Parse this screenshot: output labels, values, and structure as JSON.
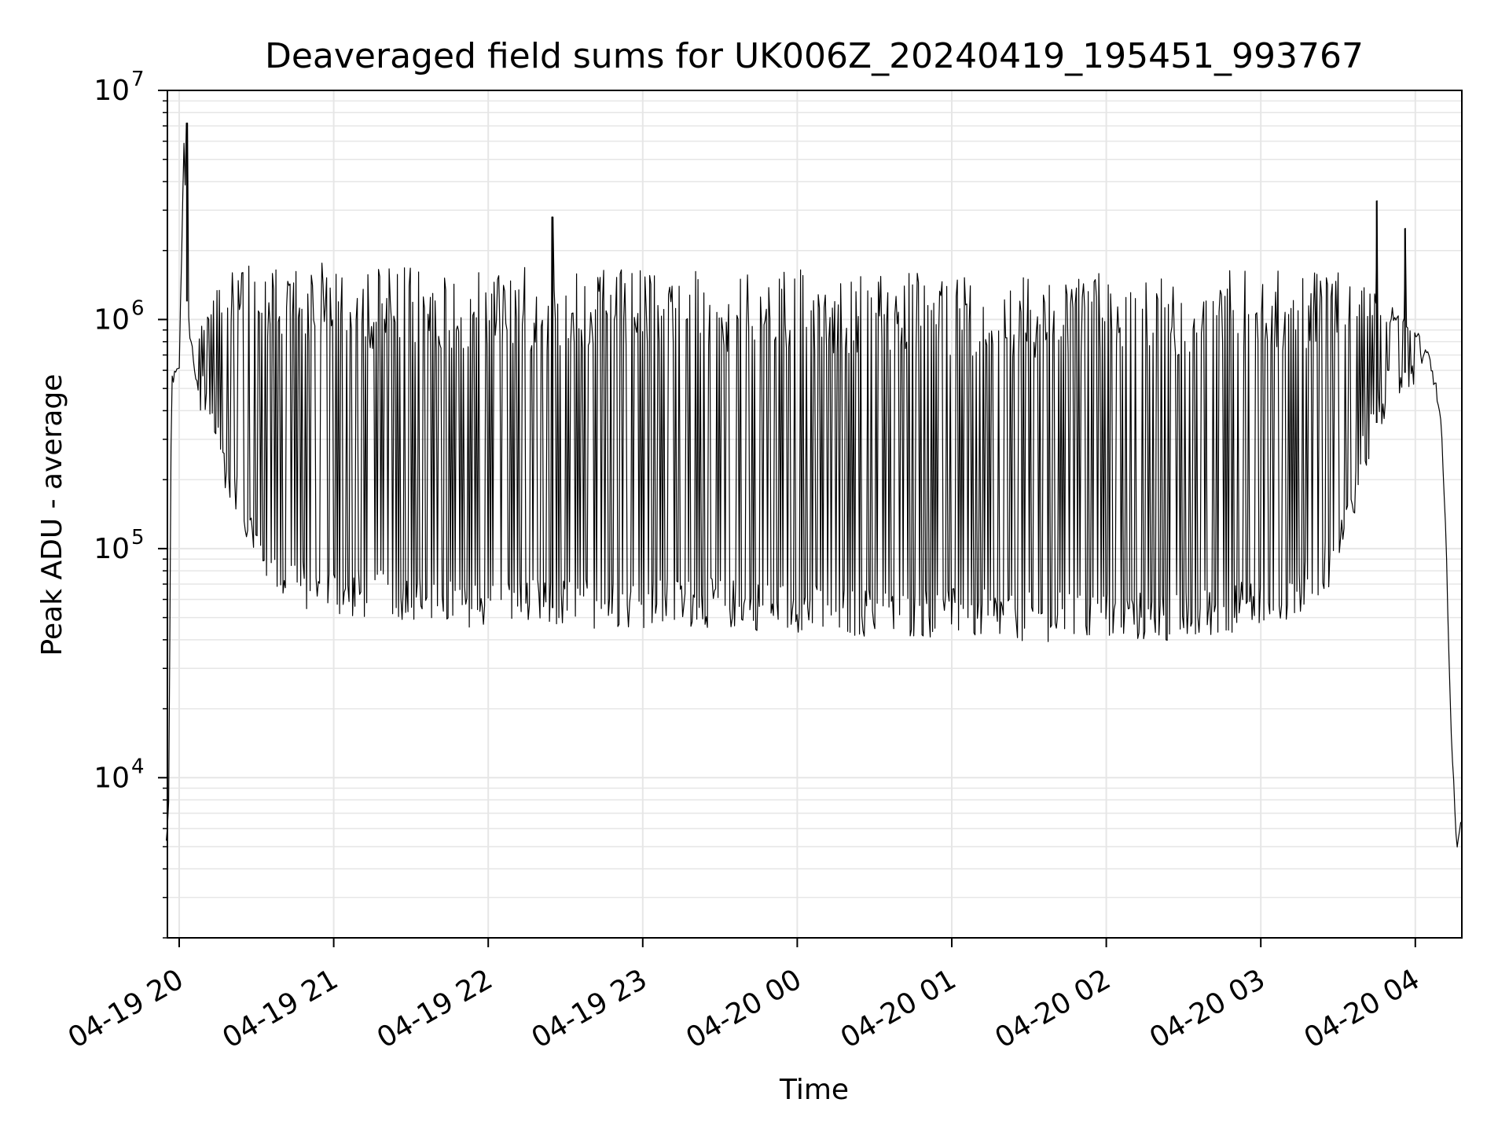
{
  "chart_data": {
    "type": "line",
    "title": "Deaveraged field sums for UK006Z_20240419_195451_993767",
    "xlabel": "Time",
    "ylabel": "Peak ADU - average",
    "yscale": "log",
    "ylim": [
      2000,
      10000000
    ],
    "xlim": [
      "2024-04-19 19:55",
      "2024-04-20 04:19"
    ],
    "grid": true,
    "colors": {
      "line": "#000000",
      "grid": "#e6e6e6"
    },
    "x_ticks": [
      "04-19 20",
      "04-19 21",
      "04-19 22",
      "04-19 23",
      "04-20 00",
      "04-20 01",
      "04-20 02",
      "04-20 03",
      "04-20 04"
    ],
    "y_ticks": [
      {
        "base": "10",
        "exp": "4",
        "value": 10000
      },
      {
        "base": "10",
        "exp": "5",
        "value": 100000
      },
      {
        "base": "10",
        "exp": "6",
        "value": 1000000
      },
      {
        "base": "10",
        "exp": "7",
        "value": 10000000
      }
    ],
    "series": [
      {
        "x": [
          "2024-04-19 19:55",
          "2024-04-19 19:56",
          "2024-04-19 19:57",
          "2024-04-19 19:58",
          "2024-04-19 20:00",
          "2024-04-19 20:02",
          "2024-04-19 20:03",
          "2024-04-19 20:04",
          "2024-04-19 20:05",
          "2024-04-19 20:07",
          "2024-04-19 20:10",
          "2024-04-19 20:12",
          "2024-04-19 20:15",
          "2024-04-19 20:20",
          "2024-04-19 20:25",
          "2024-04-19 20:30",
          "2024-04-19 20:35",
          "2024-04-19 20:40",
          "2024-04-19 20:45",
          "2024-04-19 20:50",
          "2024-04-19 20:55",
          "2024-04-19 21:00",
          "2024-04-19 21:15",
          "2024-04-19 21:30",
          "2024-04-19 21:45",
          "2024-04-19 22:00",
          "2024-04-19 22:30",
          "2024-04-19 23:00",
          "2024-04-19 23:30",
          "2024-04-20 00:00",
          "2024-04-20 00:30",
          "2024-04-20 01:00",
          "2024-04-20 01:30",
          "2024-04-20 02:00",
          "2024-04-20 02:30",
          "2024-04-20 03:00",
          "2024-04-20 03:15",
          "2024-04-20 03:30",
          "2024-04-20 03:40",
          "2024-04-20 03:50",
          "2024-04-20 04:00",
          "2024-04-20 04:05",
          "2024-04-20 04:08",
          "2024-04-20 04:10",
          "2024-04-20 04:12",
          "2024-04-20 04:14",
          "2024-04-20 04:16",
          "2024-04-20 04:18"
        ],
        "y": [
          5200,
          8000,
          550000,
          560000,
          600000,
          7200000,
          1200000,
          900000,
          750000,
          500000,
          400000,
          350000,
          300000,
          180000,
          130000,
          100000,
          85000,
          75000,
          70000,
          65000,
          65000,
          62000,
          60000,
          58000,
          56000,
          55000,
          55000,
          55000,
          55000,
          52000,
          50000,
          50000,
          48000,
          48000,
          48000,
          55000,
          62000,
          90000,
          250000,
          500000,
          650000,
          700000,
          500000,
          350000,
          100000,
          15000,
          5000,
          7000
        ],
        "envelope_high": [
          5200,
          8000,
          550000,
          560000,
          600000,
          7200000,
          1200000,
          900000,
          750000,
          900000,
          1100000,
          1300000,
          1500000,
          1600000,
          1700000,
          1750000,
          1750000,
          1800000,
          1800000,
          1800000,
          1800000,
          1800000,
          1700000,
          1700000,
          1700000,
          1700000,
          1700000,
          1650000,
          1650000,
          1650000,
          1650000,
          1650000,
          1650000,
          1650000,
          1650000,
          1650000,
          1650000,
          1600000,
          1500000,
          1200000,
          900000,
          800000,
          500000,
          350000,
          100000,
          15000,
          5000,
          7000
        ],
        "spikes": [
          {
            "x": "2024-04-19 20:03",
            "y": 7200000
          },
          {
            "x": "2024-04-19 22:25",
            "y": 2800000
          },
          {
            "x": "2024-04-20 03:45",
            "y": 3300000
          },
          {
            "x": "2024-04-20 03:56",
            "y": 2500000
          }
        ]
      }
    ]
  }
}
